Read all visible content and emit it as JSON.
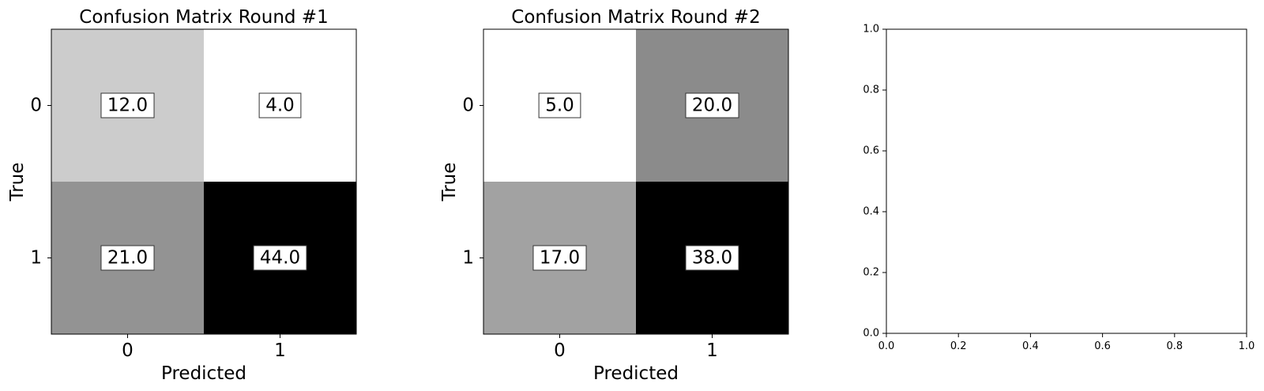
{
  "chart_data": [
    {
      "type": "heatmap",
      "title": "Confusion Matrix Round #1",
      "xlabel": "Predicted",
      "ylabel": "True",
      "x_categories": [
        "0",
        "1"
      ],
      "y_categories": [
        "0",
        "1"
      ],
      "values": [
        [
          12.0,
          4.0
        ],
        [
          21.0,
          44.0
        ]
      ],
      "value_labels": [
        [
          "12.0",
          "4.0"
        ],
        [
          "21.0",
          "44.0"
        ]
      ],
      "colormap": "grayscale: low = #ffffff, high = #000000"
    },
    {
      "type": "heatmap",
      "title": "Confusion Matrix Round #2",
      "xlabel": "Predicted",
      "ylabel": "True",
      "x_categories": [
        "0",
        "1"
      ],
      "y_categories": [
        "0",
        "1"
      ],
      "values": [
        [
          5.0,
          20.0
        ],
        [
          17.0,
          38.0
        ]
      ],
      "value_labels": [
        [
          "5.0",
          "20.0"
        ],
        [
          "17.0",
          "38.0"
        ]
      ],
      "colormap": "grayscale: low = #ffffff, high = #000000"
    },
    {
      "type": "scatter",
      "title": "",
      "xlabel": "",
      "ylabel": "",
      "xlim": [
        0.0,
        1.0
      ],
      "ylim": [
        0.0,
        1.0
      ],
      "x_ticks": [
        "0.0",
        "0.2",
        "0.4",
        "0.6",
        "0.8",
        "1.0"
      ],
      "y_ticks": [
        "0.0",
        "0.2",
        "0.4",
        "0.6",
        "0.8",
        "1.0"
      ],
      "series": []
    }
  ]
}
